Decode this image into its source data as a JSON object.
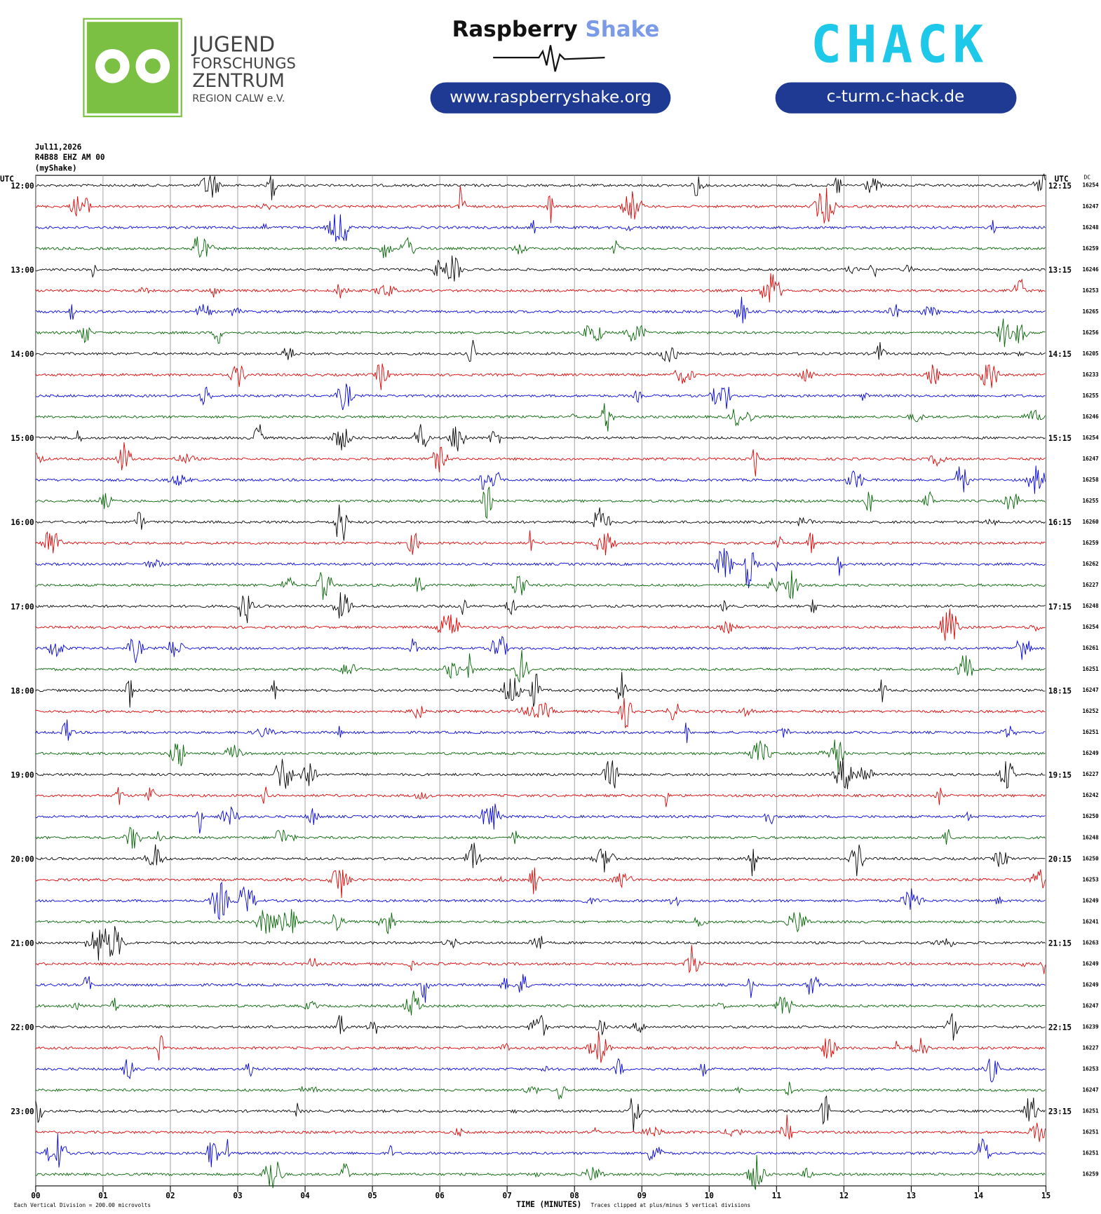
{
  "header": {
    "org_lines": [
      "JUGEND",
      "FORSCHUNGS",
      "ZENTRUM",
      "REGION CALW e.V."
    ],
    "brand_a": "Raspberry",
    "brand_b": "Shake",
    "brand_url": "www.raspberryshake.org",
    "club": "CHACK",
    "club_url": "c-turm.c-hack.de"
  },
  "chart_data": {
    "type": "helicorder",
    "date": "Jul11,2026",
    "station": "R4B88 EHZ AM 00",
    "source": "(myShake)",
    "utc_left": "UTC",
    "utc_right": "UTC",
    "dc_label": "DC",
    "colors": [
      "#000000",
      "#e00000",
      "#0000e0",
      "#006400"
    ],
    "row_labels_left": [
      "12:00",
      "13:00",
      "14:00",
      "15:00",
      "16:00",
      "17:00",
      "18:00",
      "19:00",
      "20:00",
      "21:00",
      "22:00",
      "23:00"
    ],
    "row_labels_right": [
      "12:15",
      "13:15",
      "14:15",
      "15:15",
      "16:15",
      "17:15",
      "18:15",
      "19:15",
      "20:15",
      "21:15",
      "22:15",
      "23:15"
    ],
    "dc": [
      16254,
      16247,
      16248,
      16259,
      16246,
      16253,
      16265,
      16256,
      16205,
      16233,
      16255,
      16246,
      16254,
      16247,
      16258,
      16255,
      16260,
      16259,
      16262,
      16227,
      16248,
      16254,
      16261,
      16251,
      16247,
      16252,
      16251,
      16249,
      16227,
      16242,
      16250,
      16248,
      16250,
      16253,
      16249,
      16241,
      16263,
      16249,
      16249,
      16247,
      16239,
      16227,
      16253,
      16247,
      16251,
      16251,
      16251,
      16259
    ],
    "xlim": [
      0,
      15
    ],
    "xticks": [
      {
        "value": 0,
        "label": "00"
      },
      {
        "value": 1,
        "label": "01"
      },
      {
        "value": 2,
        "label": "02"
      },
      {
        "value": 3,
        "label": "03"
      },
      {
        "value": 4,
        "label": "04"
      },
      {
        "value": 5,
        "label": "05"
      },
      {
        "value": 6,
        "label": "06"
      },
      {
        "value": 7,
        "label": "07"
      },
      {
        "value": 8,
        "label": "08"
      },
      {
        "value": 9,
        "label": "09"
      },
      {
        "value": 10,
        "label": "10"
      },
      {
        "value": 11,
        "label": "11"
      },
      {
        "value": 12,
        "label": "12"
      },
      {
        "value": 13,
        "label": "13"
      },
      {
        "value": 14,
        "label": "14"
      },
      {
        "value": 15,
        "label": "15"
      }
    ],
    "x_label": "TIME (MINUTES)",
    "scale_note": "Each Vertical Division =  200.00 microvolts",
    "clip_note": "Traces clipped at plus/minus 5 vertical divisions"
  }
}
